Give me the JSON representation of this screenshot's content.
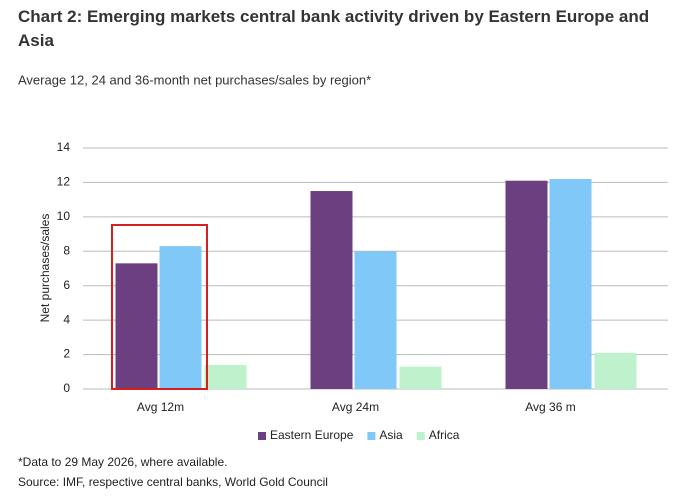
{
  "chart_data": {
    "type": "bar",
    "title": "Chart 2: Emerging markets central bank activity driven by Eastern Europe and Asia",
    "subtitle": "Average 12, 24 and 36-month net purchases/sales by region*",
    "y_label": "Net purchases/sales",
    "categories": [
      "Avg 12m",
      "Avg 24m",
      "Avg 36 m"
    ],
    "series": [
      {
        "name": "Eastern Europe",
        "color": "#6b3f80",
        "values": [
          7.3,
          11.5,
          12.1
        ]
      },
      {
        "name": "Asia",
        "color": "#80c8f8",
        "values": [
          8.3,
          8.0,
          12.2
        ]
      },
      {
        "name": "Africa",
        "color": "#bdf2cc",
        "values": [
          1.4,
          1.3,
          2.1
        ]
      }
    ],
    "ylim": [
      0,
      14
    ],
    "yticks": [
      0,
      2,
      4,
      6,
      8,
      10,
      12,
      14
    ],
    "grid": true,
    "legend": "bottom",
    "notes": [
      "*Data to 29 May 2026, where available.",
      "Source: IMF, respective central banks, World Gold Council"
    ]
  }
}
